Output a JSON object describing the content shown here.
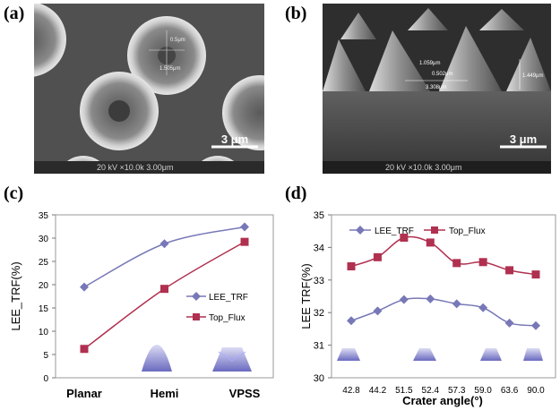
{
  "panels": {
    "a": {
      "label": "(a)",
      "scale_bar": "3 μm",
      "info": "20 kV ×10.0k 3.00μm",
      "annotations": [
        "0.5μm",
        "1.505μm"
      ]
    },
    "b": {
      "label": "(b)",
      "scale_bar": "3 μm",
      "info": "20 kV ×10.0k 3.00μm",
      "annotations": [
        "1.059μm",
        "0.502μm",
        "3.308μm",
        "1.449μm"
      ]
    },
    "c": {
      "label": "(c)"
    },
    "d": {
      "label": "(d)"
    }
  },
  "chart_data": [
    {
      "type": "line",
      "categories": [
        "Planar",
        "Hemi",
        "VPSS"
      ],
      "series": [
        {
          "name": "LEE_TRF",
          "values": [
            19.5,
            28.8,
            32.4
          ],
          "color": "#7878b8",
          "marker": "diamond"
        },
        {
          "name": "Top_Flux",
          "values": [
            6.2,
            19.1,
            29.2
          ],
          "color": "#b03050",
          "marker": "square"
        }
      ],
      "ylabel": "LEE_TRF(%)",
      "xlabel": "",
      "ylim": [
        0,
        35
      ],
      "yticks": [
        "0",
        "5",
        "10",
        "15",
        "20",
        "25",
        "30",
        "35"
      ],
      "legend": "right",
      "grid": false
    },
    {
      "type": "line",
      "categories": [
        "42.8",
        "44.2",
        "51.5",
        "52.4",
        "57.3",
        "59.0",
        "63.6",
        "90.0"
      ],
      "series": [
        {
          "name": "LEE_TRF",
          "values": [
            31.75,
            32.05,
            32.4,
            32.42,
            32.27,
            32.15,
            31.68,
            31.6
          ],
          "color": "#7878b8",
          "marker": "diamond"
        },
        {
          "name": "Top_Flux",
          "values": [
            33.42,
            33.7,
            34.3,
            34.15,
            33.52,
            33.55,
            33.3,
            33.17
          ],
          "color": "#b03050",
          "marker": "square"
        }
      ],
      "ylabel": "LEE TRF(%)",
      "xlabel": "Crater angle(°)",
      "ylim": [
        30,
        35
      ],
      "yticks": [
        "30",
        "31",
        "32",
        "33",
        "34",
        "35"
      ],
      "legend": "top",
      "grid": false
    }
  ]
}
